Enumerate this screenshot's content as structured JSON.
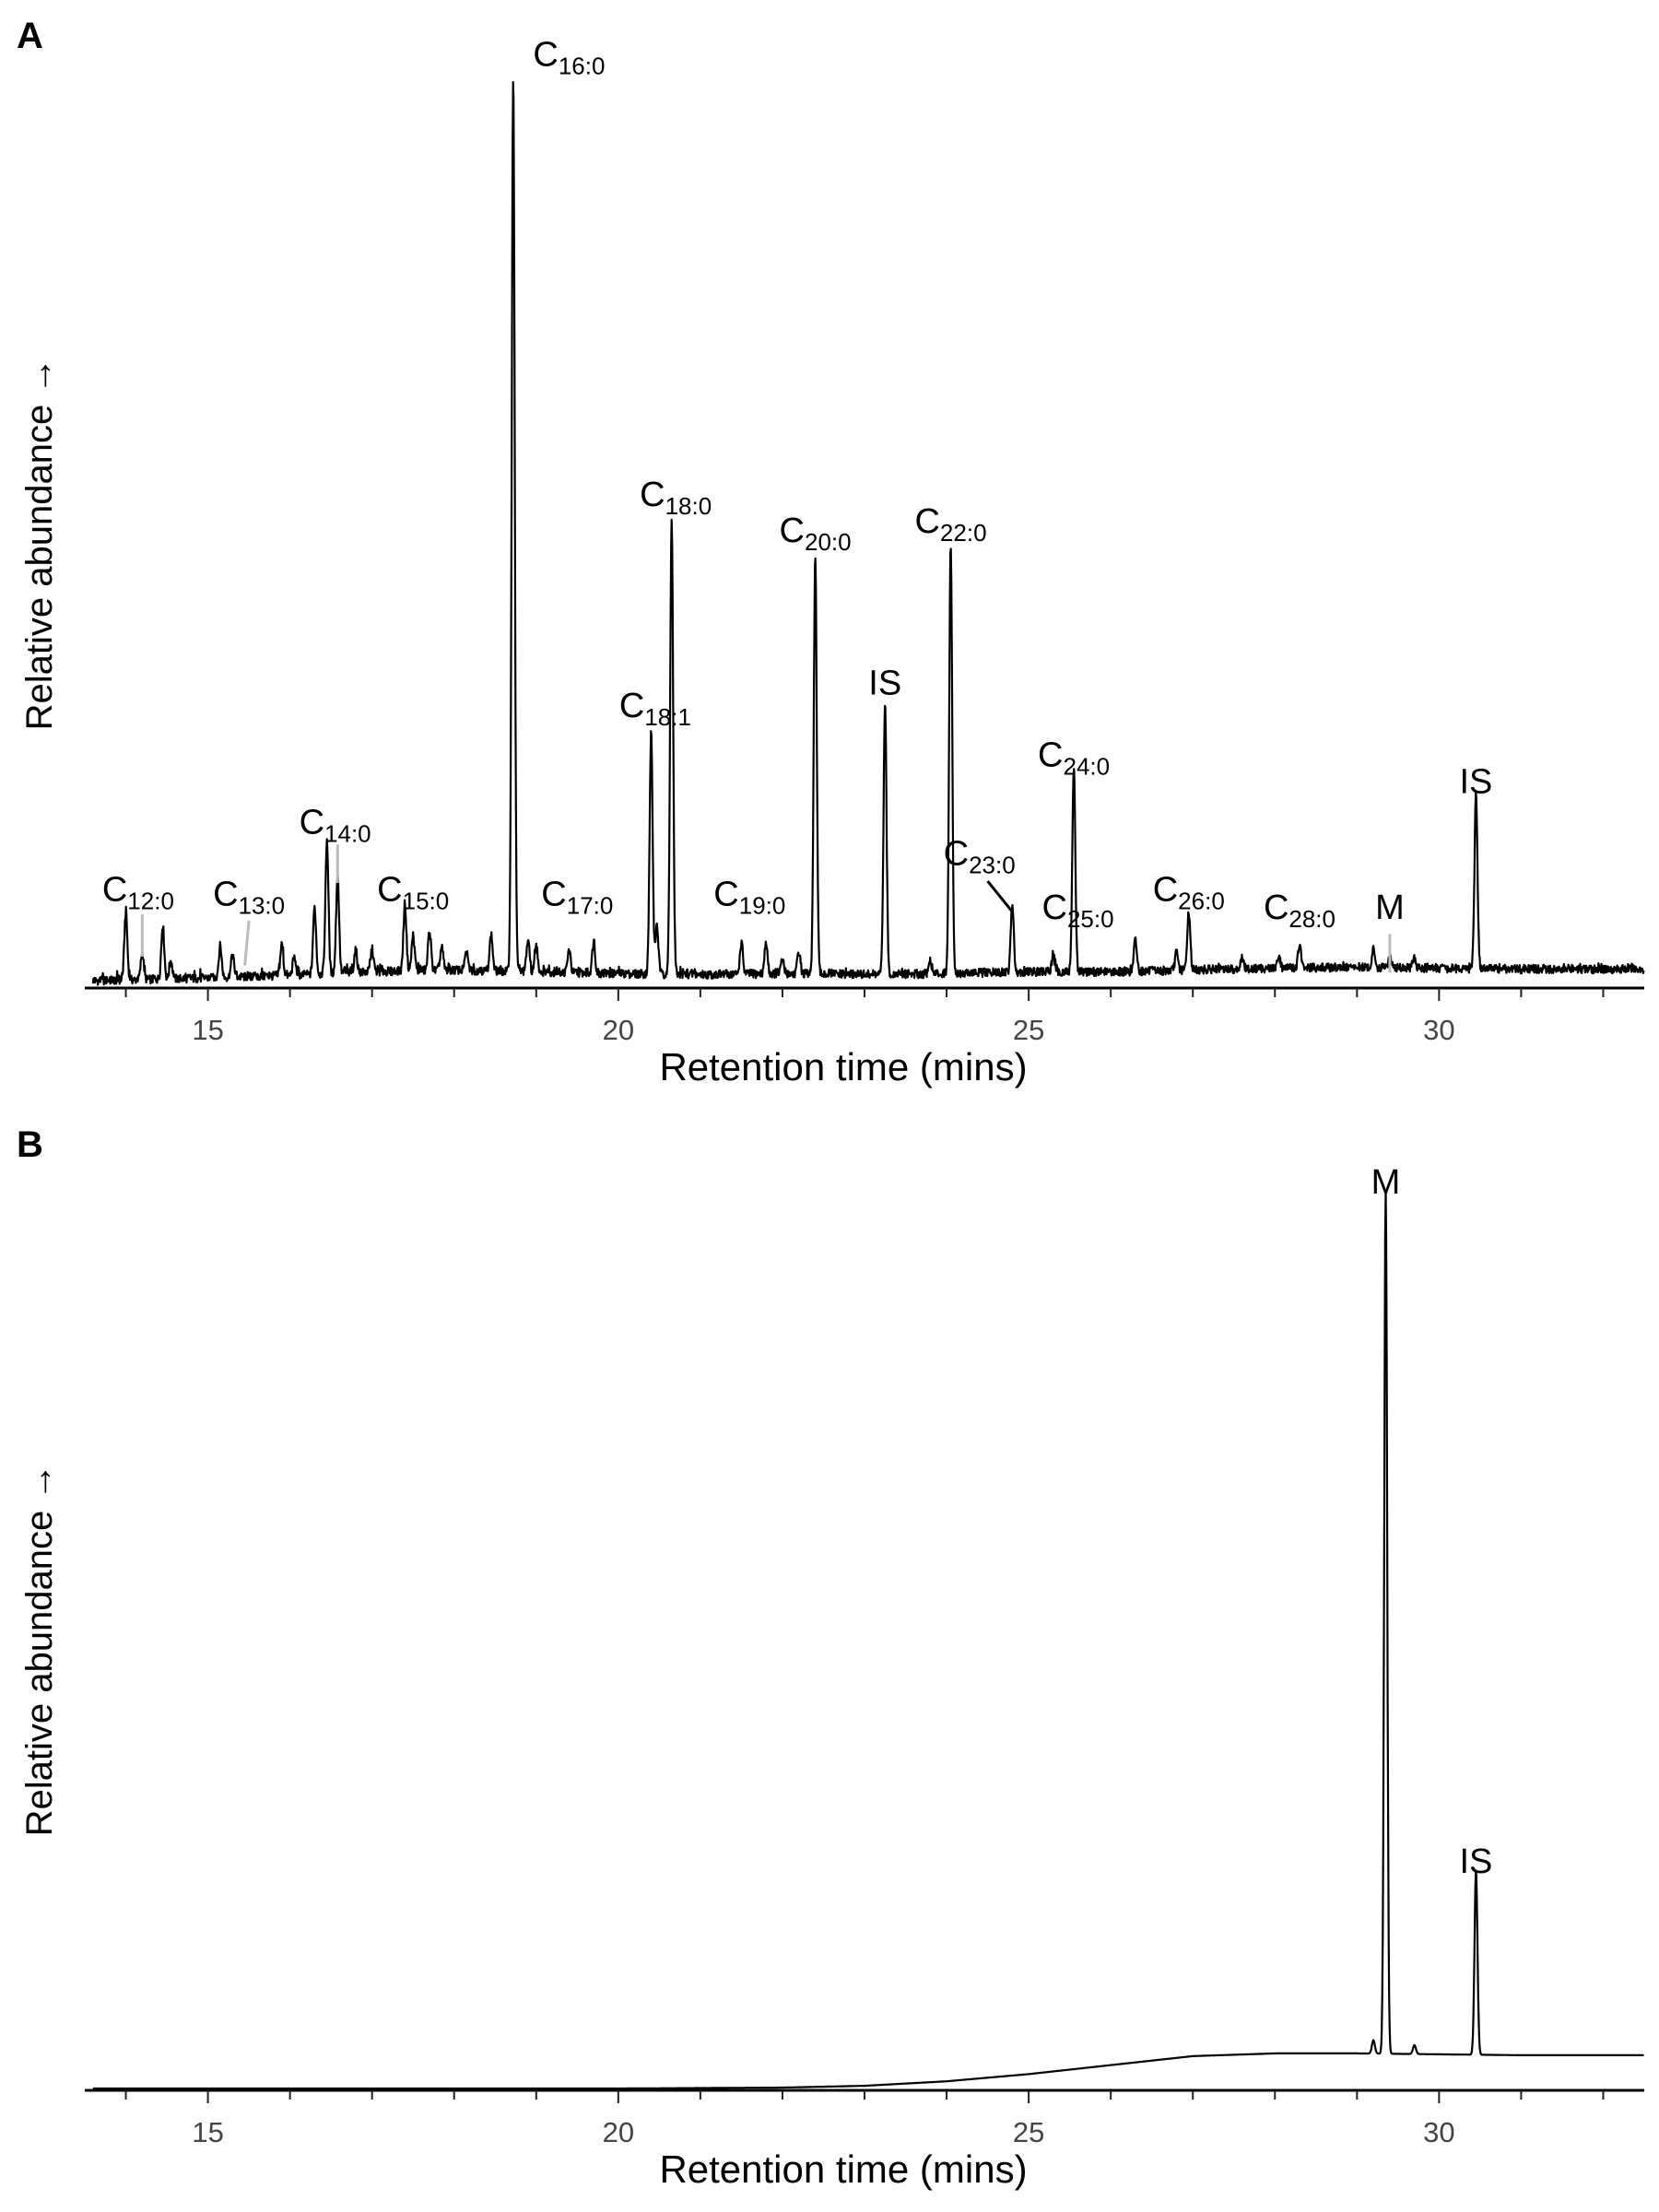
{
  "chart_data": [
    {
      "panel": "A",
      "type": "line",
      "xlabel": "Retention time (mins)",
      "ylabel": "Relative abundance →",
      "xlim": [
        13.5,
        32.5
      ],
      "xticks": [
        15,
        20,
        25,
        30
      ],
      "ylim": [
        0,
        100
      ],
      "baseline": [
        [
          13.6,
          0.6
        ],
        [
          15,
          0.9
        ],
        [
          16,
          1.2
        ],
        [
          17,
          1.6
        ],
        [
          18,
          1.8
        ],
        [
          19,
          1.6
        ],
        [
          20,
          1.4
        ],
        [
          21,
          1.3
        ],
        [
          22,
          1.4
        ],
        [
          23,
          1.3
        ],
        [
          24,
          1.4
        ],
        [
          25,
          1.6
        ],
        [
          26,
          1.6
        ],
        [
          27,
          1.8
        ],
        [
          28,
          2.0
        ],
        [
          29,
          2.1
        ],
        [
          30,
          2.0
        ],
        [
          31,
          1.9
        ],
        [
          32.5,
          1.9
        ]
      ],
      "noise_amp": 1.2,
      "peaks": [
        {
          "x": 14.0,
          "h": 7.5
        },
        {
          "x": 14.2,
          "h": 3.0
        },
        {
          "x": 14.45,
          "h": 6.0
        },
        {
          "x": 14.55,
          "h": 2.0
        },
        {
          "x": 15.15,
          "h": 3.5
        },
        {
          "x": 15.3,
          "h": 2.5
        },
        {
          "x": 15.9,
          "h": 3.5
        },
        {
          "x": 16.05,
          "h": 2.0
        },
        {
          "x": 16.3,
          "h": 7.5
        },
        {
          "x": 16.45,
          "h": 15.0
        },
        {
          "x": 16.58,
          "h": 11.0
        },
        {
          "x": 16.8,
          "h": 2.5
        },
        {
          "x": 17.0,
          "h": 2.5
        },
        {
          "x": 17.4,
          "h": 7.5
        },
        {
          "x": 17.5,
          "h": 4.0
        },
        {
          "x": 17.7,
          "h": 4.5
        },
        {
          "x": 17.85,
          "h": 2.5
        },
        {
          "x": 18.15,
          "h": 2.0
        },
        {
          "x": 18.45,
          "h": 4.0
        },
        {
          "x": 18.72,
          "h": 100.0
        },
        {
          "x": 18.9,
          "h": 3.5
        },
        {
          "x": 19.0,
          "h": 3.0
        },
        {
          "x": 19.4,
          "h": 2.5
        },
        {
          "x": 19.7,
          "h": 3.5
        },
        {
          "x": 20.4,
          "h": 27.0
        },
        {
          "x": 20.47,
          "h": 5.5
        },
        {
          "x": 20.65,
          "h": 51.0
        },
        {
          "x": 21.5,
          "h": 3.5
        },
        {
          "x": 21.8,
          "h": 3.5
        },
        {
          "x": 22.0,
          "h": 1.5
        },
        {
          "x": 22.2,
          "h": 2.5
        },
        {
          "x": 22.4,
          "h": 47.0
        },
        {
          "x": 23.25,
          "h": 30.0
        },
        {
          "x": 23.8,
          "h": 1.5
        },
        {
          "x": 24.05,
          "h": 48.0
        },
        {
          "x": 24.8,
          "h": 7.5
        },
        {
          "x": 25.3,
          "h": 2.0
        },
        {
          "x": 25.55,
          "h": 23.0
        },
        {
          "x": 26.3,
          "h": 3.5
        },
        {
          "x": 26.8,
          "h": 2.0
        },
        {
          "x": 26.95,
          "h": 6.5
        },
        {
          "x": 27.6,
          "h": 1.2
        },
        {
          "x": 28.05,
          "h": 1.2
        },
        {
          "x": 28.3,
          "h": 2.5
        },
        {
          "x": 29.2,
          "h": 2.0
        },
        {
          "x": 29.4,
          "h": 1.2
        },
        {
          "x": 29.7,
          "h": 1.0
        },
        {
          "x": 30.45,
          "h": 19.5
        }
      ],
      "labels": [
        {
          "base": "C",
          "sub": "12:0",
          "x": 14.2,
          "pos": {
            "lx": 14.15,
            "ly": 9.5
          },
          "lead": {
            "x1": 14.2,
            "y1": 8.0,
            "x2": 14.2,
            "y2": 3.3,
            "gray": true
          }
        },
        {
          "base": "C",
          "sub": "13:0",
          "x": 15.45,
          "pos": {
            "lx": 15.5,
            "ly": 9.0
          },
          "lead": {
            "x1": 15.5,
            "y1": 7.3,
            "x2": 15.45,
            "y2": 2.3,
            "gray": true
          }
        },
        {
          "base": "C",
          "sub": "14:0",
          "x": 16.58,
          "pos": {
            "lx": 16.55,
            "ly": 17.0
          },
          "lead": {
            "x1": 16.58,
            "y1": 15.8,
            "x2": 16.58,
            "y2": 11.5,
            "gray": true
          }
        },
        {
          "base": "C",
          "sub": "15:0",
          "x": 17.4,
          "pos": {
            "lx": 17.5,
            "ly": 9.5
          }
        },
        {
          "base": "C",
          "sub": "16:0",
          "x": 18.72,
          "pos": {
            "lx": 19.4,
            "ly": 102.5
          }
        },
        {
          "base": "C",
          "sub": "17:0",
          "x": 19.7,
          "pos": {
            "lx": 19.5,
            "ly": 9.0
          }
        },
        {
          "base": "C",
          "sub": "18:1",
          "x": 20.4,
          "pos": {
            "lx": 20.45,
            "ly": 30.0
          }
        },
        {
          "base": "C",
          "sub": "18:0",
          "x": 20.65,
          "pos": {
            "lx": 20.7,
            "ly": 53.5
          }
        },
        {
          "base": "C",
          "sub": "19:0",
          "x": 21.5,
          "pos": {
            "lx": 21.6,
            "ly": 9.0
          }
        },
        {
          "base": "C",
          "sub": "20:0",
          "x": 22.4,
          "pos": {
            "lx": 22.4,
            "ly": 49.5
          }
        },
        {
          "base": "",
          "sub": "",
          "text": "IS",
          "x": 23.25,
          "pos": {
            "lx": 23.25,
            "ly": 32.5
          }
        },
        {
          "base": "C",
          "sub": "22:0",
          "x": 24.05,
          "pos": {
            "lx": 24.05,
            "ly": 50.5
          }
        },
        {
          "base": "C",
          "sub": "23:0",
          "x": 24.8,
          "pos": {
            "lx": 24.4,
            "ly": 13.5
          },
          "lead": {
            "x1": 24.5,
            "y1": 11.7,
            "x2": 24.8,
            "y2": 8.3,
            "gray": false
          }
        },
        {
          "base": "C",
          "sub": "24:0",
          "x": 25.55,
          "pos": {
            "lx": 25.55,
            "ly": 24.5
          }
        },
        {
          "base": "C",
          "sub": "25:0",
          "x": 25.55,
          "pos": {
            "lx": 25.6,
            "ly": 7.5
          }
        },
        {
          "base": "C",
          "sub": "26:0",
          "x": 26.95,
          "pos": {
            "lx": 26.95,
            "ly": 9.5
          }
        },
        {
          "base": "C",
          "sub": "28:0",
          "x": 28.3,
          "pos": {
            "lx": 28.3,
            "ly": 7.5
          }
        },
        {
          "base": "",
          "sub": "",
          "text": "M",
          "x": 29.4,
          "pos": {
            "lx": 29.4,
            "ly": 7.5
          },
          "lead": {
            "x1": 29.4,
            "y1": 5.8,
            "x2": 29.4,
            "y2": 1.5,
            "gray": true
          }
        },
        {
          "base": "",
          "sub": "",
          "text": "IS",
          "x": 30.45,
          "pos": {
            "lx": 30.45,
            "ly": 21.5
          }
        }
      ]
    },
    {
      "panel": "B",
      "type": "line",
      "xlabel": "Retention time (mins)",
      "ylabel": "Relative abundance →",
      "xlim": [
        13.5,
        32.5
      ],
      "xticks": [
        15,
        20,
        25,
        30
      ],
      "ylim": [
        0,
        100
      ],
      "baseline": [
        [
          13.6,
          0.0
        ],
        [
          20,
          0.0
        ],
        [
          22,
          0.1
        ],
        [
          23,
          0.3
        ],
        [
          24,
          0.8
        ],
        [
          25,
          1.6
        ],
        [
          26,
          2.6
        ],
        [
          27,
          3.6
        ],
        [
          28,
          3.9
        ],
        [
          29,
          3.9
        ],
        [
          30,
          3.8
        ],
        [
          31,
          3.7
        ],
        [
          32.5,
          3.7
        ]
      ],
      "noise_amp": 0,
      "peaks": [
        {
          "x": 29.2,
          "h": 1.5
        },
        {
          "x": 29.35,
          "h": 96.0
        },
        {
          "x": 29.7,
          "h": 1.0
        },
        {
          "x": 30.45,
          "h": 20.5
        }
      ],
      "labels": [
        {
          "base": "",
          "sub": "",
          "text": "M",
          "x": 29.35,
          "pos": {
            "lx": 29.35,
            "ly": 99.5
          }
        },
        {
          "base": "",
          "sub": "",
          "text": "IS",
          "x": 30.45,
          "pos": {
            "lx": 30.45,
            "ly": 24.0
          }
        }
      ]
    }
  ],
  "panels": {
    "A": {
      "letter": "A",
      "ylabel": "Relative abundance →",
      "xlabel": "Retention time (mins)",
      "ticks": [
        "15",
        "20",
        "25",
        "30"
      ]
    },
    "B": {
      "letter": "B",
      "ylabel": "Relative abundance →",
      "xlabel": "Retention time (mins)",
      "ticks": [
        "15",
        "20",
        "25",
        "30"
      ]
    }
  }
}
